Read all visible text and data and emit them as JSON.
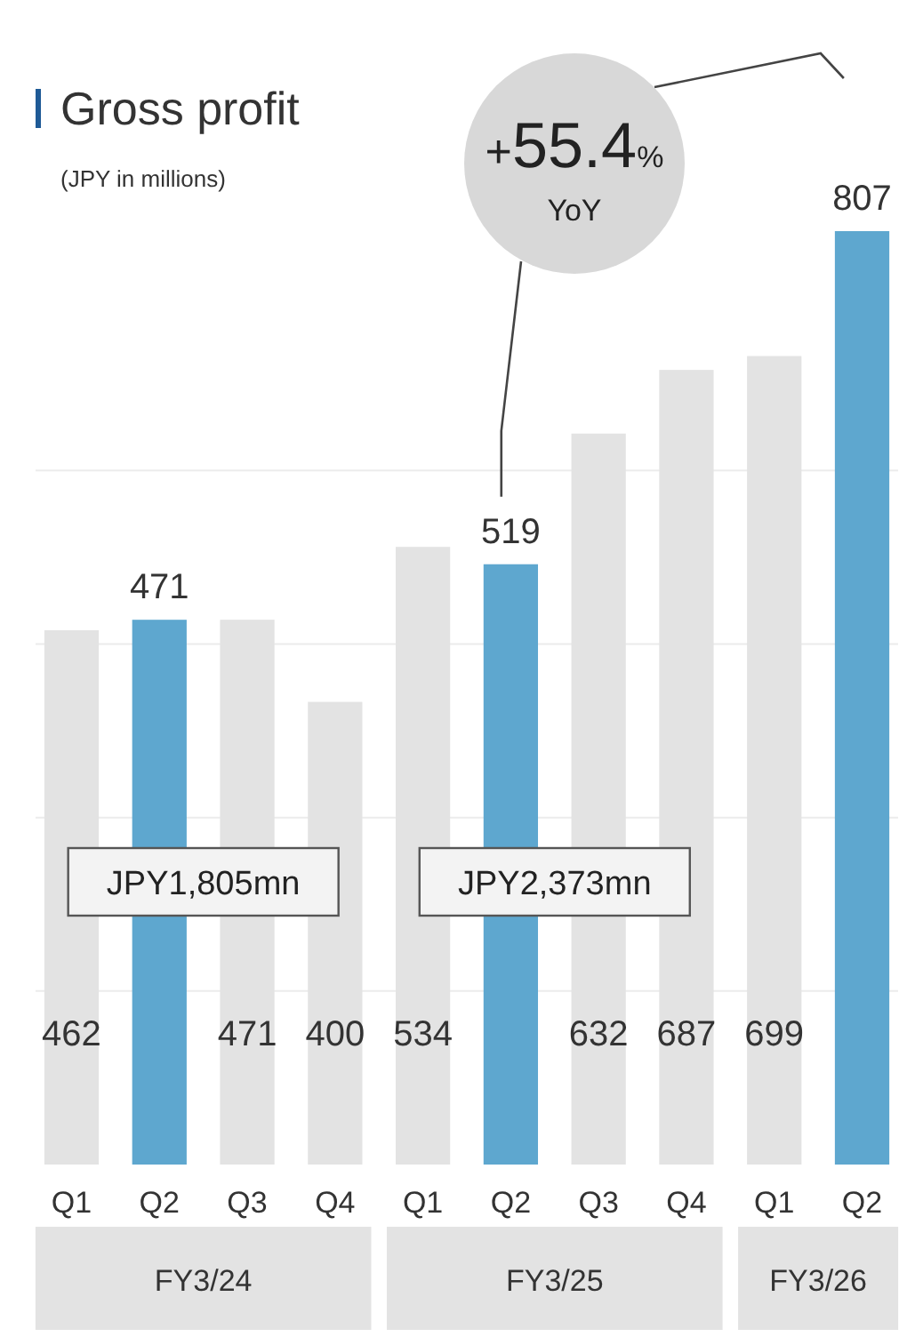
{
  "chart_data": {
    "type": "bar",
    "title": "Gross profit",
    "subtitle": "(JPY in millions)",
    "categories": [
      "Q1",
      "Q2",
      "Q3",
      "Q4",
      "Q1",
      "Q2",
      "Q3",
      "Q4",
      "Q1",
      "Q2"
    ],
    "values": [
      462,
      471,
      471,
      400,
      534,
      519,
      632,
      687,
      699,
      807
    ],
    "colors": [
      "#e3e3e3",
      "#5ea7cf",
      "#e3e3e3",
      "#e3e3e3",
      "#e3e3e3",
      "#5ea7cf",
      "#e3e3e3",
      "#e3e3e3",
      "#e3e3e3",
      "#5ea7cf"
    ],
    "data_labels": true,
    "yticks": [
      {
        "value": 150,
        "label": null
      },
      {
        "value": 300,
        "label": null
      },
      {
        "value": 450,
        "label": null
      },
      {
        "value": 600,
        "label": null
      }
    ],
    "grid": "y",
    "tick_labels": "x",
    "annotations": [
      "+55.4%",
      "YoY",
      "JPY1,805mn",
      "JPY2,373mn",
      "FY3/24",
      "FY3/25",
      "FY3/26"
    ]
  }
}
